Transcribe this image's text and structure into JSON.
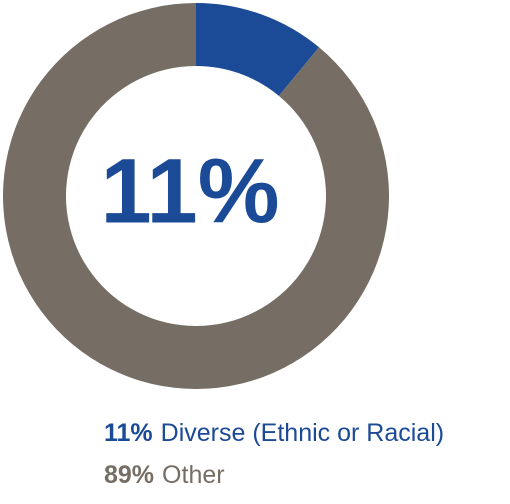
{
  "chart_data": {
    "type": "pie",
    "donut": true,
    "categories": [
      "Diverse (Ethnic or Racial)",
      "Other"
    ],
    "values": [
      11,
      89
    ],
    "value_labels": [
      "11%",
      "89%"
    ],
    "colors": [
      "#1b4a97",
      "#766e64"
    ]
  }
}
